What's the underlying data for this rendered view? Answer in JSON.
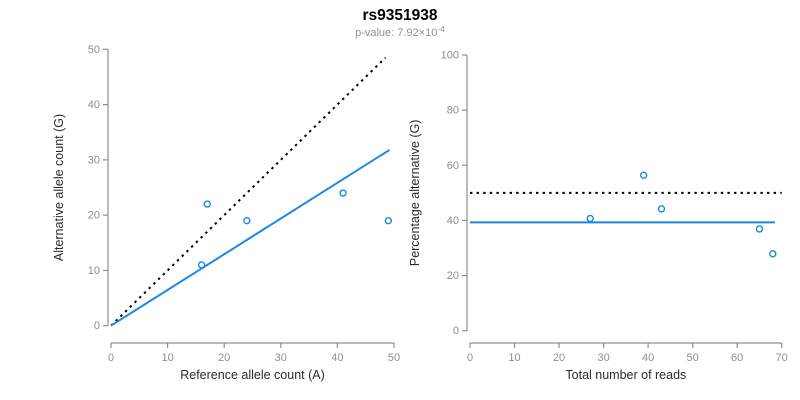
{
  "header": {
    "title": "rs9351938",
    "subtitle_text": "p-value: 7.92×10",
    "subtitle_exponent": "-4"
  },
  "colors": {
    "accent_blue": "#1e87e5",
    "dotted_black": "#000000",
    "axis_line": "#8f8f8f",
    "tick_label": "#8e8e8e",
    "axis_title": "#2b2b2b",
    "subtitle_gray": "#909090"
  },
  "chart_data": [
    {
      "type": "scatter",
      "name": "allele-counts",
      "xlabel": "Reference allele count (A)",
      "ylabel": "Alternative allele count (G)",
      "xlim": [
        0,
        50
      ],
      "ylim": [
        0,
        50
      ],
      "xticks": [
        0,
        10,
        20,
        30,
        40,
        50
      ],
      "yticks": [
        0,
        10,
        20,
        30,
        40,
        50
      ],
      "grid": false,
      "legend": "none",
      "points": [
        {
          "x": 16,
          "y": 11
        },
        {
          "x": 17,
          "y": 22
        },
        {
          "x": 24,
          "y": 19
        },
        {
          "x": 41,
          "y": 24
        },
        {
          "x": 49,
          "y": 19
        }
      ],
      "lines": [
        {
          "name": "identity-line",
          "style": "dotted",
          "color": "#000000",
          "from": [
            0,
            0
          ],
          "to": [
            48.5,
            48.5
          ]
        },
        {
          "name": "fit-line",
          "style": "solid",
          "color": "#1e87e5",
          "from": [
            0,
            0
          ],
          "to": [
            49.2,
            31.8
          ]
        }
      ]
    },
    {
      "type": "scatter",
      "name": "percentage-vs-reads",
      "xlabel": "Total number of reads",
      "ylabel": "Percentage alternative (G)",
      "xlim": [
        0,
        70
      ],
      "ylim": [
        0,
        100
      ],
      "xticks": [
        0,
        10,
        20,
        30,
        40,
        50,
        60,
        70
      ],
      "yticks": [
        0,
        20,
        40,
        60,
        80,
        100
      ],
      "grid": false,
      "legend": "none",
      "points": [
        {
          "x": 27,
          "y": 40.7
        },
        {
          "x": 39,
          "y": 56.4
        },
        {
          "x": 43,
          "y": 44.2
        },
        {
          "x": 65,
          "y": 36.9
        },
        {
          "x": 68,
          "y": 27.9
        }
      ],
      "lines": [
        {
          "name": "expected-50pct-line",
          "style": "dotted",
          "color": "#000000",
          "from": [
            0,
            50
          ],
          "to": [
            70,
            50
          ]
        },
        {
          "name": "observed-pct-line",
          "style": "solid",
          "color": "#1e87e5",
          "from": [
            0,
            39.3
          ],
          "to": [
            68.5,
            39.3
          ]
        }
      ]
    }
  ]
}
